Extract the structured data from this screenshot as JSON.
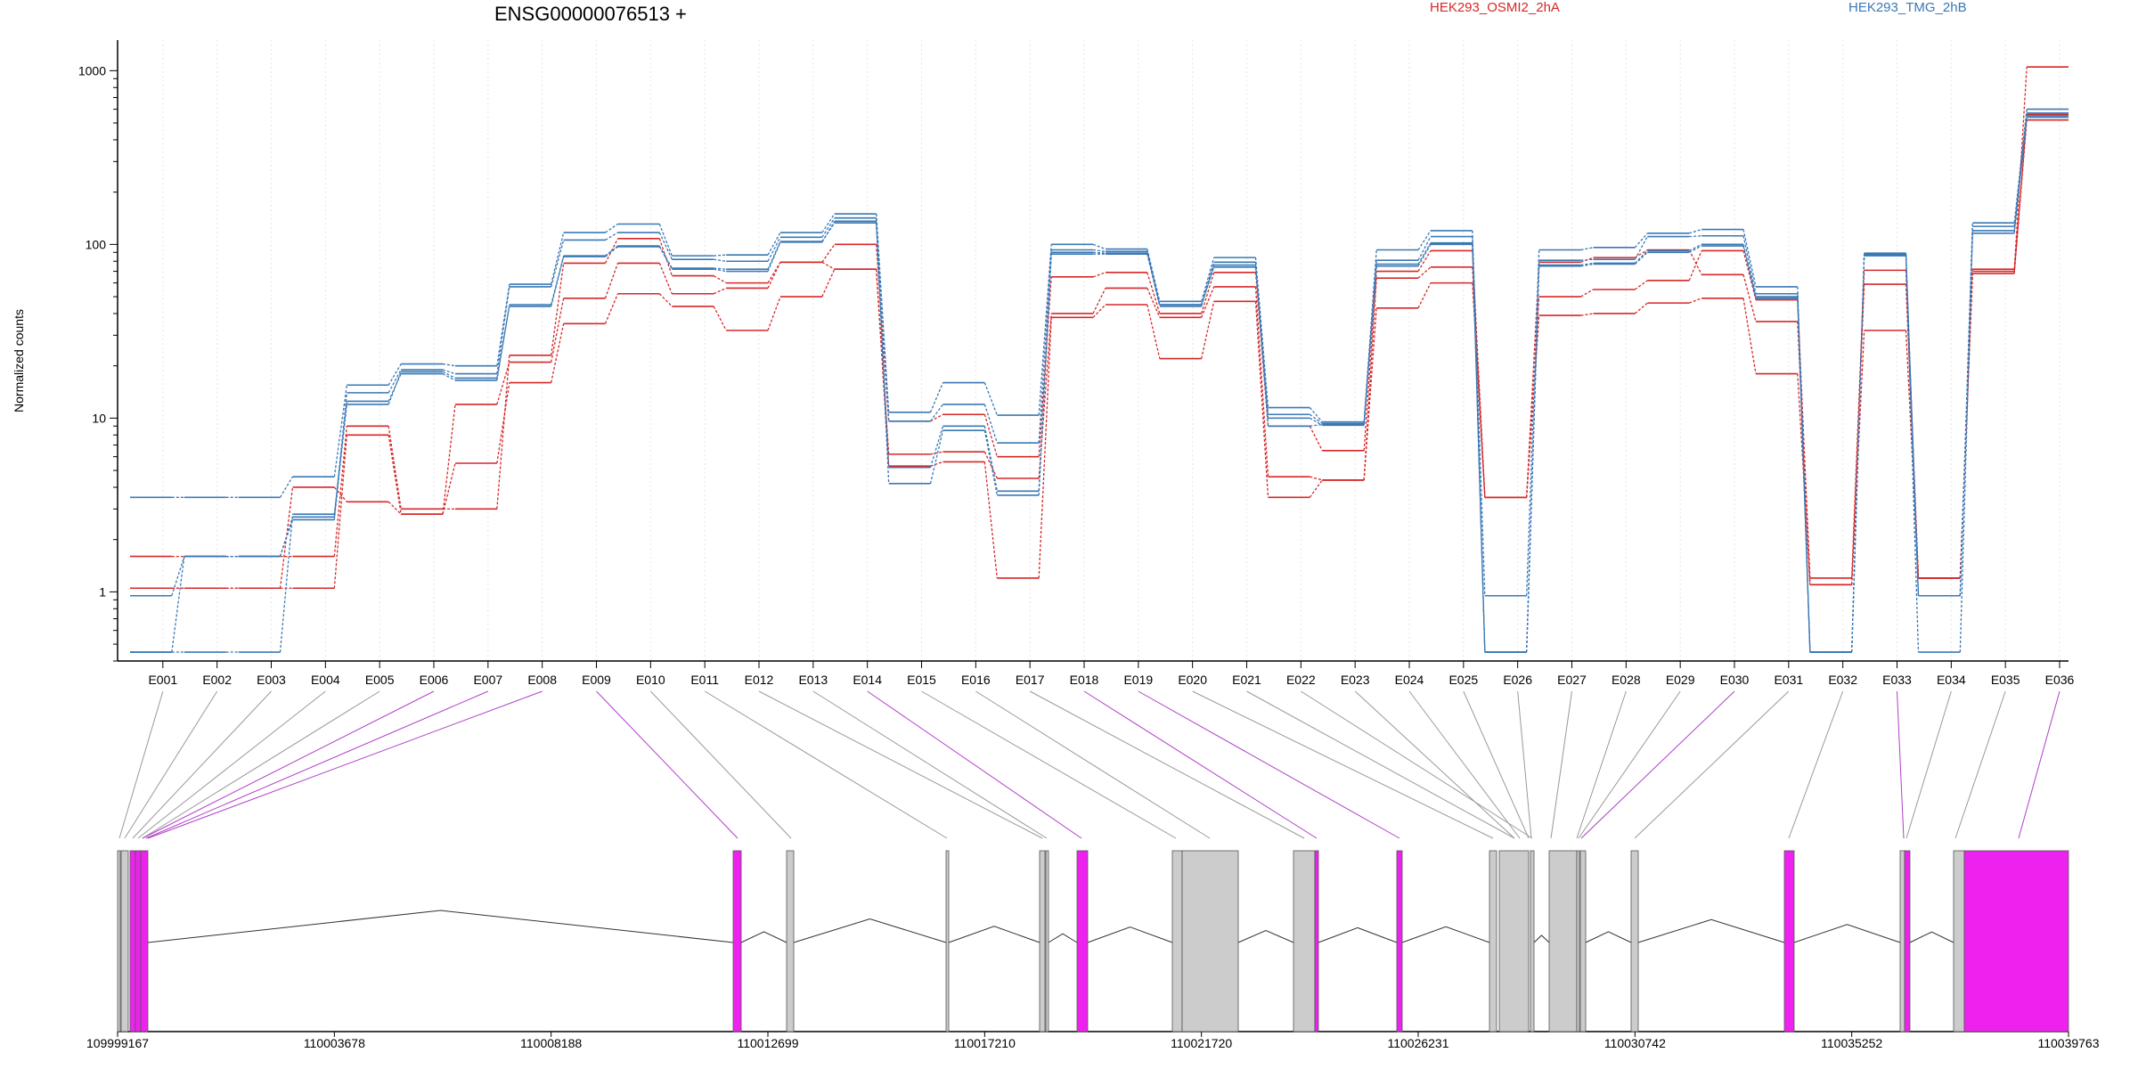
{
  "chart_data": {
    "type": "line",
    "title": "ENSG00000076513 +",
    "ylabel": "Normalized counts",
    "yscale": "log",
    "ylim": [
      0.4,
      1500
    ],
    "y_ticks": [
      1,
      10,
      100,
      1000
    ],
    "y_tick_labels": [
      "1",
      "10",
      "100",
      "1000"
    ],
    "grid": "vertical dotted",
    "legend_placement": "top-right",
    "categories": [
      "E001",
      "E002",
      "E003",
      "E004",
      "E005",
      "E006",
      "E007",
      "E008",
      "E009",
      "E010",
      "E011",
      "E012",
      "E013",
      "E014",
      "E015",
      "E016",
      "E017",
      "E018",
      "E019",
      "E020",
      "E021",
      "E022",
      "E023",
      "E024",
      "E025",
      "E026",
      "E027",
      "E028",
      "E029",
      "E030",
      "E031",
      "E032",
      "E033",
      "E034",
      "E035",
      "E036"
    ],
    "conditions": [
      {
        "name": "HEK293_OSMI2_2hA",
        "color": "#d62728"
      },
      {
        "name": "HEK293_TMG_2hB",
        "color": "#3a78b5"
      }
    ],
    "series": [
      {
        "condition": "HEK293_OSMI2_2hA",
        "values": [
          1.6,
          1.6,
          1.6,
          1.6,
          9,
          3,
          3,
          23,
          78,
          108,
          66,
          60,
          79,
          100,
          9.6,
          10.5,
          6,
          65,
          69,
          40,
          69,
          9,
          6.5,
          70,
          92,
          3.5,
          50,
          55,
          62,
          92,
          48,
          1.2,
          71,
          1.2,
          72,
          1050
        ]
      },
      {
        "condition": "HEK293_OSMI2_2hA",
        "values": [
          1.05,
          1.05,
          1.05,
          1.05,
          8,
          2.8,
          12,
          21,
          49,
          78,
          52,
          56,
          79,
          72,
          6.2,
          6.4,
          4.5,
          40,
          56,
          38,
          57,
          4.6,
          4.4,
          64,
          74,
          3.5,
          79,
          84,
          93,
          67,
          36,
          1.1,
          59,
          1.2,
          70,
          560
        ]
      },
      {
        "condition": "HEK293_OSMI2_2hA",
        "values": [
          1.05,
          1.05,
          1.05,
          4,
          3.3,
          2.8,
          5.5,
          16,
          35,
          52,
          44,
          32,
          50,
          72,
          5.3,
          5.6,
          1.2,
          38,
          45,
          22,
          47,
          3.5,
          4.4,
          43,
          60,
          3.5,
          39,
          40,
          46,
          49,
          18,
          1.1,
          32,
          1.2,
          68,
          520
        ]
      },
      {
        "condition": "HEK293_TMG_2hB",
        "values": [
          3.5,
          3.5,
          3.5,
          4.6,
          15.5,
          20.5,
          20,
          59,
          117,
          131,
          86,
          87,
          117,
          150,
          10.8,
          16,
          10.4,
          100,
          94,
          47,
          84,
          11.5,
          9.5,
          93,
          120,
          0.95,
          93,
          96,
          116,
          122,
          57,
          0.45,
          89,
          0.95,
          133,
          600
        ]
      },
      {
        "condition": "HEK293_TMG_2hB",
        "values": [
          0.95,
          1.6,
          1.6,
          2.7,
          14,
          19,
          18,
          57,
          106,
          117,
          82,
          80,
          110,
          142,
          9.6,
          12,
          7.2,
          93,
          91,
          45,
          79,
          10.5,
          9.3,
          81,
          111,
          0.45,
          81,
          82,
          111,
          112,
          52,
          0.45,
          88,
          0.95,
          127,
          570
        ]
      },
      {
        "condition": "HEK293_TMG_2hB",
        "values": [
          0.45,
          1.6,
          1.6,
          2.6,
          12.5,
          18,
          16.5,
          45,
          86,
          98,
          73,
          72,
          104,
          133,
          5.2,
          9,
          3.8,
          88,
          88,
          44,
          76,
          10,
          9.1,
          77,
          102,
          0.45,
          76,
          78,
          92,
          100,
          49,
          0.45,
          86,
          0.95,
          116,
          540
        ]
      },
      {
        "condition": "HEK293_TMG_2hB",
        "values": [
          0.45,
          0.45,
          0.45,
          2.8,
          12,
          18.5,
          17,
          44,
          85,
          97,
          72,
          70,
          103,
          136,
          4.2,
          8.5,
          3.6,
          90,
          89,
          45,
          74,
          9,
          9.2,
          75,
          100,
          0.45,
          75,
          77,
          90,
          98,
          50,
          0.45,
          87,
          0.45,
          120,
          550
        ]
      }
    ],
    "gene_model": {
      "x_ticks": [
        109999167,
        110003678,
        110008188,
        110012699,
        110017210,
        110021720,
        110026231,
        110030742,
        110035252,
        110039763
      ],
      "x_tick_labels": [
        "109999167",
        "110003678",
        "110008188",
        "110012699",
        "110017210",
        "110021720",
        "110026231",
        "110030742",
        "110035252",
        "110039763"
      ],
      "exon_colors": {
        "normal": "#cccccc",
        "highlighted": "#ee22ee"
      }
    }
  }
}
